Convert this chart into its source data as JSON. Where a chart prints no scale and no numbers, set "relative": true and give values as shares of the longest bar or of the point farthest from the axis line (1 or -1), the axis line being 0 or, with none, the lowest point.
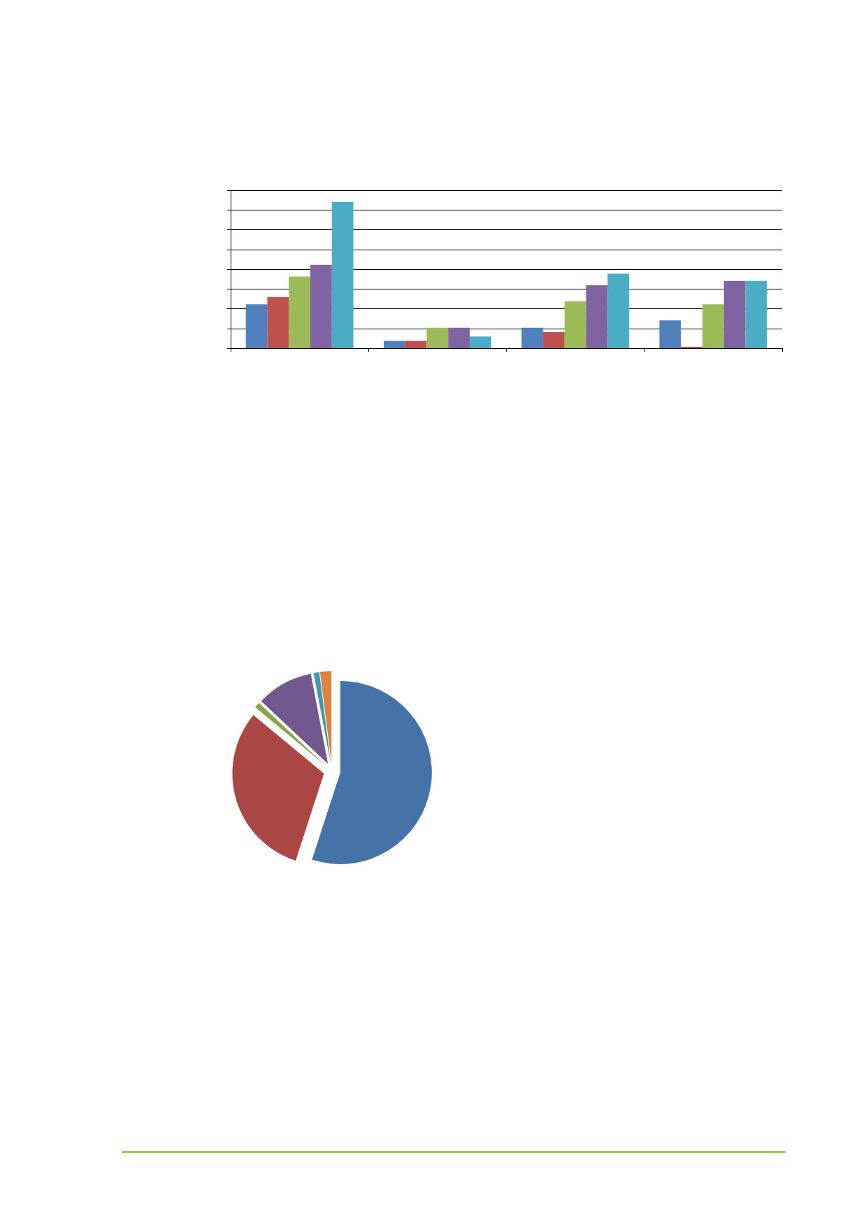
{
  "chart_data": [
    {
      "type": "bar",
      "relative": true,
      "categories": [
        null,
        null,
        null,
        null
      ],
      "grid": "y",
      "series": [
        {
          "color": "#4f81bd",
          "values": [
            0.3,
            0.05,
            0.14,
            0.19
          ]
        },
        {
          "color": "#c0504d",
          "values": [
            0.35,
            0.05,
            0.11,
            0.01
          ]
        },
        {
          "color": "#9bbb59",
          "values": [
            0.49,
            0.14,
            0.32,
            0.3
          ]
        },
        {
          "color": "#8064a2",
          "values": [
            0.57,
            0.14,
            0.43,
            0.46
          ]
        },
        {
          "color": "#4bacc6",
          "values": [
            1,
            0.08,
            0.51,
            0.46
          ]
        }
      ]
    },
    {
      "type": "pie",
      "categories": [
        null,
        null,
        null,
        null,
        null,
        null
      ],
      "values": [
        55,
        31,
        1,
        10,
        1,
        2
      ],
      "colors": [
        "#4572a7",
        "#aa4643",
        "#89a54e",
        "#71588f",
        "#4198af",
        "#db843d"
      ]
    }
  ]
}
